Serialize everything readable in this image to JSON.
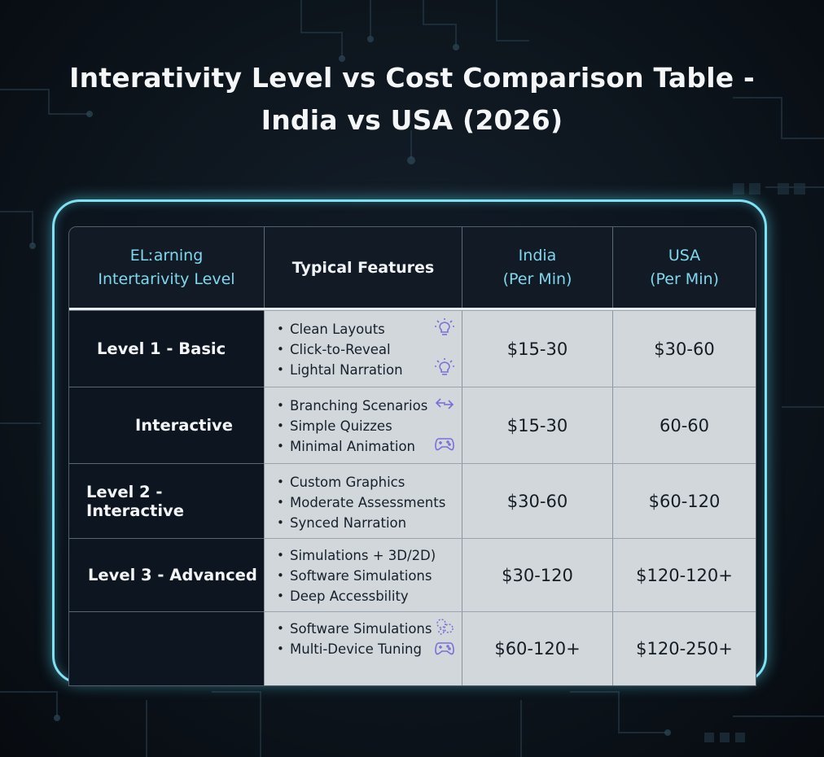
{
  "title": {
    "line1": "Interativity Level vs Cost Comparison Table -",
    "line2": "India vs USA (2026)"
  },
  "table": {
    "headers": {
      "level": [
        "ELːarning",
        "Intertarivity Level"
      ],
      "features": "Typical Features",
      "india": [
        "India",
        "(Per Min)"
      ],
      "usa": [
        "USA",
        "(Per Min)"
      ]
    },
    "rows": [
      {
        "level": "Level 1 - Basic",
        "features": [
          "Clean Layouts",
          "Click-to-Reveal",
          "Lightal Narration"
        ],
        "icons": [
          "lightbulb-icon",
          "lightbulb-icon"
        ],
        "india": "$15-30",
        "usa": "$30-60"
      },
      {
        "level": "Interactive",
        "features": [
          "Branching Scenarios",
          "Simple Quizzes",
          "Minimal Animation"
        ],
        "icons": [
          "arrows-icon",
          "gamepad-icon"
        ],
        "india": "$15-30",
        "usa": "60-60"
      },
      {
        "level": "Level 2 - Interactive",
        "features": [
          "Custom Graphics",
          "Moderate Assessments",
          "Synced Narration"
        ],
        "icons": [],
        "india": "$30-60",
        "usa": "$60-120"
      },
      {
        "level": "Level 3 - Advanced",
        "features": [
          "Simulations + 3D/2D)",
          "Software Simulations",
          "Deep Accessbility"
        ],
        "icons": [],
        "india": "$30-120",
        "usa": "$120-120+"
      },
      {
        "level": "",
        "features": [
          "Software Simulations",
          "Multi-Device Tuning"
        ],
        "icons": [
          "gear-cluster-icon",
          "gamepad-icon"
        ],
        "india": "$60-120+",
        "usa": "$120-250+"
      }
    ]
  },
  "colors": {
    "frame_glow": "#7fe2f2",
    "header_accent": "#7fd8ee",
    "icon_purple": "#7a6fd6"
  }
}
